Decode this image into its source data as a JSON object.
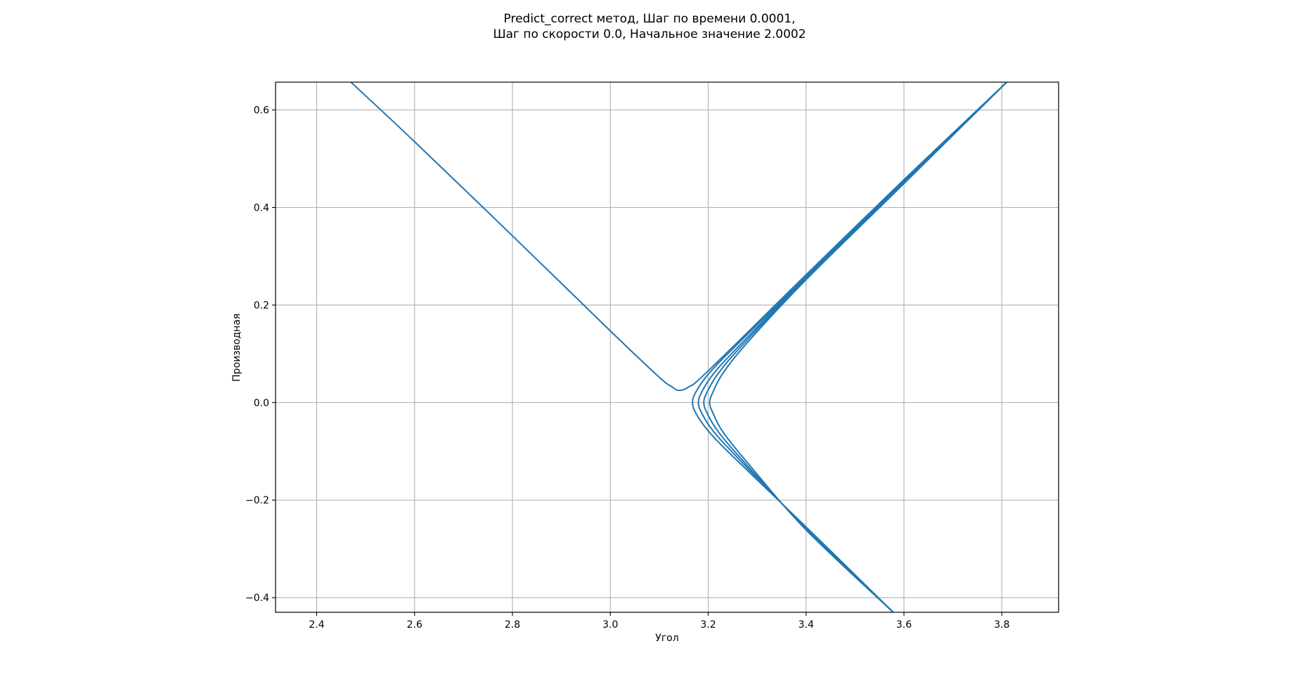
{
  "title_lines": [
    "Predict_correct метод, Шаг по времени 0.0001,",
    "Шаг по скорости 0.0, Начальное значение 2.0002"
  ],
  "chart_data": {
    "type": "line",
    "title": "Predict_correct метод, Шаг по времени 0.0001, Шаг по скорости 0.0, Начальное значение 2.0002",
    "xlabel": "Угол",
    "ylabel": "Производная",
    "xlim": [
      2.316,
      3.916
    ],
    "ylim": [
      -0.43,
      0.657
    ],
    "xticks": [
      2.4,
      2.6,
      2.8,
      3.0,
      3.2,
      3.4,
      3.6,
      3.8
    ],
    "xtick_labels": [
      "2.4",
      "2.6",
      "2.8",
      "3.0",
      "3.2",
      "3.4",
      "3.6",
      "3.8"
    ],
    "yticks": [
      -0.4,
      -0.2,
      0.0,
      0.2,
      0.4,
      0.6
    ],
    "ytick_labels": [
      "−0.4",
      "−0.2",
      "0.0",
      "0.2",
      "0.4",
      "0.6"
    ],
    "grid": true,
    "legend": "none",
    "line_color": "#1f77b4",
    "grid_color": "#b0b0b0",
    "series": [
      {
        "x": [
          2.47,
          2.6,
          2.8,
          3.0,
          3.1,
          3.125,
          3.14,
          3.16,
          3.2,
          3.4,
          3.6,
          3.81
        ],
        "y": [
          0.657,
          0.535,
          0.342,
          0.147,
          0.052,
          0.033,
          0.025,
          0.032,
          0.065,
          0.262,
          0.457,
          0.657
        ]
      },
      {
        "x": [
          3.578,
          3.4,
          3.25,
          3.2,
          3.175,
          3.168,
          3.175,
          3.2,
          3.25,
          3.4,
          3.6,
          3.81
        ],
        "y": [
          -0.43,
          -0.255,
          -0.11,
          -0.058,
          -0.022,
          0.0,
          0.022,
          0.058,
          0.11,
          0.258,
          0.455,
          0.657
        ]
      },
      {
        "x": [
          3.578,
          3.4,
          3.26,
          3.21,
          3.187,
          3.18,
          3.187,
          3.21,
          3.26,
          3.4,
          3.6,
          3.81
        ],
        "y": [
          -0.43,
          -0.257,
          -0.113,
          -0.058,
          -0.022,
          0.0,
          0.022,
          0.058,
          0.113,
          0.256,
          0.453,
          0.657
        ]
      },
      {
        "x": [
          3.578,
          3.4,
          3.27,
          3.22,
          3.198,
          3.191,
          3.198,
          3.22,
          3.27,
          3.4,
          3.6,
          3.81
        ],
        "y": [
          -0.43,
          -0.259,
          -0.118,
          -0.059,
          -0.022,
          0.0,
          0.022,
          0.059,
          0.118,
          0.254,
          0.451,
          0.657
        ]
      },
      {
        "x": [
          3.578,
          3.4,
          3.28,
          3.23,
          3.21,
          3.203,
          3.21,
          3.23,
          3.28,
          3.4,
          3.6,
          3.81
        ],
        "y": [
          -0.43,
          -0.261,
          -0.123,
          -0.06,
          -0.022,
          0.0,
          0.022,
          0.06,
          0.123,
          0.252,
          0.449,
          0.657
        ]
      }
    ]
  }
}
